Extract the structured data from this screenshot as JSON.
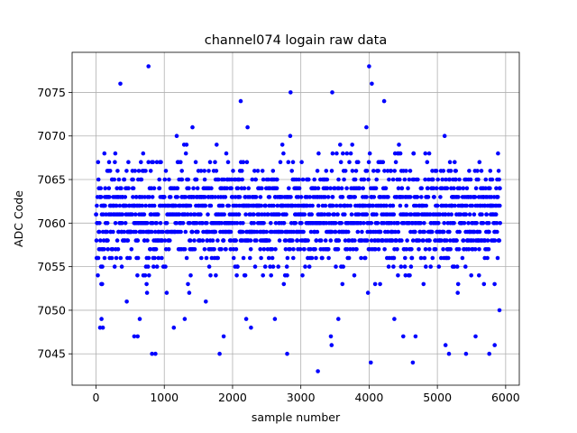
{
  "chart_data": {
    "type": "scatter",
    "title": "channel074 logain raw data",
    "xlabel": "sample number",
    "ylabel": "ADC Code",
    "xlim": [
      -350,
      6200
    ],
    "ylim": [
      7041.4,
      7079.6
    ],
    "xticks": [
      0,
      1000,
      2000,
      3000,
      4000,
      5000,
      6000
    ],
    "yticks": [
      7045,
      7050,
      7055,
      7060,
      7065,
      7070,
      7075
    ],
    "xtick_labels": [
      "0",
      "1000",
      "2000",
      "3000",
      "4000",
      "5000",
      "6000"
    ],
    "ytick_labels": [
      "7045",
      "7050",
      "7055",
      "7060",
      "7065",
      "7070",
      "7075"
    ],
    "grid": true,
    "marker_color": "#0000ff",
    "n_samples": 5920,
    "value_range": [
      7043,
      7078
    ],
    "series": [
      {
        "values_note": "",
        "points": [
          [
            357,
            7076
          ],
          [
            768,
            7078
          ],
          [
            4000,
            7078
          ],
          [
            4040,
            7076
          ],
          [
            2120,
            7074
          ],
          [
            2850,
            7075
          ],
          [
            3460,
            7075
          ],
          [
            4220,
            7074
          ],
          [
            3250,
            7043
          ],
          [
            4025,
            7044
          ],
          [
            4640,
            7044
          ],
          [
            820,
            7045
          ],
          [
            870,
            7045
          ],
          [
            1810,
            7045
          ],
          [
            2800,
            7045
          ],
          [
            5170,
            7045
          ],
          [
            5420,
            7045
          ],
          [
            5760,
            7045
          ],
          [
            5840,
            7046
          ],
          [
            3450,
            7046
          ],
          [
            5120,
            7046
          ],
          [
            560,
            7047
          ],
          [
            610,
            7047
          ],
          [
            1870,
            7047
          ],
          [
            3440,
            7047
          ],
          [
            4500,
            7047
          ],
          [
            4680,
            7047
          ],
          [
            5560,
            7047
          ],
          [
            60,
            7048
          ],
          [
            100,
            7048
          ],
          [
            1140,
            7048
          ],
          [
            2270,
            7048
          ],
          [
            80,
            7049
          ],
          [
            640,
            7049
          ],
          [
            1300,
            7049
          ],
          [
            2200,
            7049
          ],
          [
            2620,
            7049
          ],
          [
            3550,
            7049
          ],
          [
            4370,
            7049
          ],
          [
            5910,
            7050
          ]
        ]
      }
    ]
  }
}
